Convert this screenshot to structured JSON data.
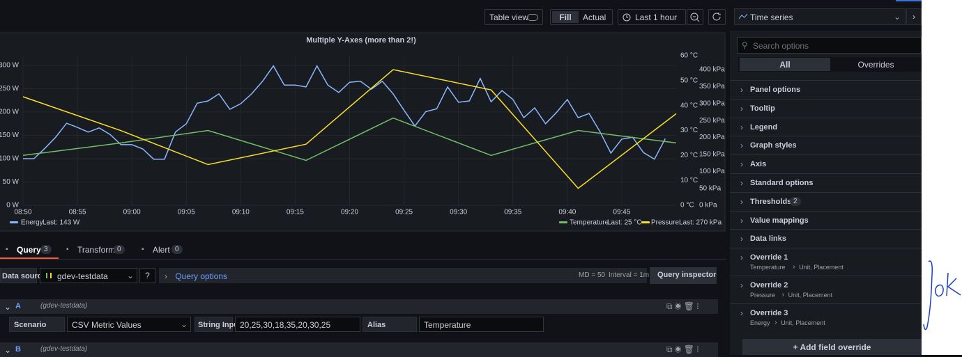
{
  "toolbar": {
    "table_view": "Table view",
    "fill": "Fill",
    "actual": "Actual",
    "time_range": "Last 1 hour",
    "visualization": "Time series"
  },
  "chart_data": {
    "type": "line",
    "title": "Multiple Y-Axes (more than 2!)",
    "xlim": [
      "08:50",
      "09:50"
    ],
    "xticks": [
      "08:50",
      "08:55",
      "09:00",
      "09:05",
      "09:10",
      "09:15",
      "09:20",
      "09:25",
      "09:30",
      "09:35",
      "09:40",
      "09:45"
    ],
    "ylim": [
      0,
      321
    ],
    "yticks": [
      {
        "value": 0,
        "label": "0 W"
      },
      {
        "value": 50,
        "label": "50 W"
      },
      {
        "value": 100,
        "label": "100 W"
      },
      {
        "value": 150,
        "label": "150 W"
      },
      {
        "value": 200,
        "label": "200 W"
      },
      {
        "value": 250,
        "label": "250 W"
      },
      {
        "value": 300,
        "label": "300 W"
      }
    ],
    "y2lim": [
      0,
      60
    ],
    "y2ticks": [
      {
        "value": 0,
        "label": "0 °C"
      },
      {
        "value": 10,
        "label": "10 °C"
      },
      {
        "value": 20,
        "label": "20 °C"
      },
      {
        "value": 30,
        "label": "30 °C"
      },
      {
        "value": 40,
        "label": "40 °C"
      },
      {
        "value": 50,
        "label": "50 °C"
      },
      {
        "value": 60,
        "label": "60 °C"
      }
    ],
    "y3lim": [
      0,
      441
    ],
    "y3ticks": [
      {
        "value": 0,
        "label": "0 kPa"
      },
      {
        "value": 50,
        "label": "50 kPa"
      },
      {
        "value": 100,
        "label": "100 kPa"
      },
      {
        "value": 150,
        "label": "150 kPa"
      },
      {
        "value": 200,
        "label": "200 kPa"
      },
      {
        "value": 250,
        "label": "250 kPa"
      },
      {
        "value": 300,
        "label": "300 kPa"
      },
      {
        "value": 350,
        "label": "350 kPa"
      },
      {
        "value": 400,
        "label": "400 kPa"
      }
    ],
    "grid": true,
    "series": [
      {
        "name": "Energy",
        "color": "#8ab8ff",
        "legend_value": "Last: 143 W",
        "x": [
          "08:50",
          "08:51",
          "08:52",
          "08:53",
          "08:54",
          "08:55",
          "08:56",
          "08:57",
          "08:58",
          "08:59",
          "09:00",
          "09:01",
          "09:02",
          "09:03",
          "09:04",
          "09:05",
          "09:06",
          "09:07",
          "09:08",
          "09:09",
          "09:10",
          "09:11",
          "09:12",
          "09:13",
          "09:14",
          "09:15",
          "09:16",
          "09:17",
          "09:18",
          "09:19",
          "09:20",
          "09:21",
          "09:22",
          "09:23",
          "09:24",
          "09:25",
          "09:26",
          "09:27",
          "09:28",
          "09:29",
          "09:30",
          "09:31",
          "09:32",
          "09:33",
          "09:34",
          "09:35",
          "09:36",
          "09:37",
          "09:38",
          "09:39",
          "09:40",
          "09:41",
          "09:42",
          "09:43",
          "09:44",
          "09:45",
          "09:46",
          "09:47",
          "09:48",
          "09:49"
        ],
        "values": [
          100,
          100,
          122,
          146,
          176,
          167,
          157,
          166,
          152,
          130,
          130,
          121,
          99,
          99,
          157,
          175,
          219,
          224,
          239,
          206,
          218,
          239,
          266,
          299,
          258,
          258,
          254,
          299,
          258,
          242,
          264,
          266,
          249,
          266,
          239,
          204,
          170,
          201,
          207,
          254,
          221,
          224,
          272,
          222,
          246,
          227,
          188,
          209,
          175,
          199,
          227,
          188,
          197,
          158,
          112,
          142,
          146,
          113,
          99,
          143
        ]
      },
      {
        "name": "Temperature",
        "color": "#73bf69",
        "axis": "y2",
        "legend_value": "Last: 25 °C",
        "x": [
          "08:50",
          "08:59",
          "09:07",
          "09:16",
          "09:24",
          "09:33",
          "09:41",
          "09:50"
        ],
        "values": [
          20,
          25,
          30,
          18,
          35,
          20,
          30,
          25
        ]
      },
      {
        "name": "Pressure",
        "color": "#fade2a",
        "axis": "y3",
        "legend_value": "Last: 270 kPa",
        "x": [
          "08:50",
          "08:59",
          "09:07",
          "09:16",
          "09:24",
          "09:33",
          "09:41",
          "09:50"
        ],
        "values": [
          320,
          220,
          120,
          180,
          400,
          340,
          50,
          270
        ]
      }
    ]
  },
  "query_tabs": [
    {
      "label": "Query",
      "count": 3
    },
    {
      "label": "Transform",
      "count": 0
    },
    {
      "label": "Alert",
      "count": 0
    }
  ],
  "datasource": {
    "label": "Data source",
    "name": "gdev-testdata",
    "query_options": "Query options",
    "md": "MD = 50",
    "interval": "Interval = 1m",
    "inspector": "Query inspector"
  },
  "queries": [
    {
      "ref": "A",
      "datasource": "(gdev-testdata)",
      "scenario_label": "Scenario",
      "scenario": "CSV Metric Values",
      "string_input_label": "String Input",
      "string_input": "20,25,30,18,35,20,30,25",
      "alias_label": "Alias",
      "alias": "Temperature"
    },
    {
      "ref": "B",
      "datasource": "(gdev-testdata)"
    }
  ],
  "options": {
    "search": "Search options",
    "tabs": [
      "All",
      "Overrides"
    ],
    "sections": [
      {
        "label": "Panel options"
      },
      {
        "label": "Tooltip"
      },
      {
        "label": "Legend"
      },
      {
        "label": "Graph styles"
      },
      {
        "label": "Axis"
      },
      {
        "label": "Standard options"
      },
      {
        "label": "Thresholds",
        "badge": 2
      },
      {
        "label": "Value mappings"
      },
      {
        "label": "Data links"
      }
    ],
    "overrides": [
      {
        "title": "Override 1",
        "field": "Temperature",
        "props": "Unit, Placement"
      },
      {
        "title": "Override 2",
        "field": "Pressure",
        "props": "Unit, Placement"
      },
      {
        "title": "Override 3",
        "field": "Energy",
        "props": "Unit, Placement"
      }
    ],
    "add_override": "Add field override"
  }
}
